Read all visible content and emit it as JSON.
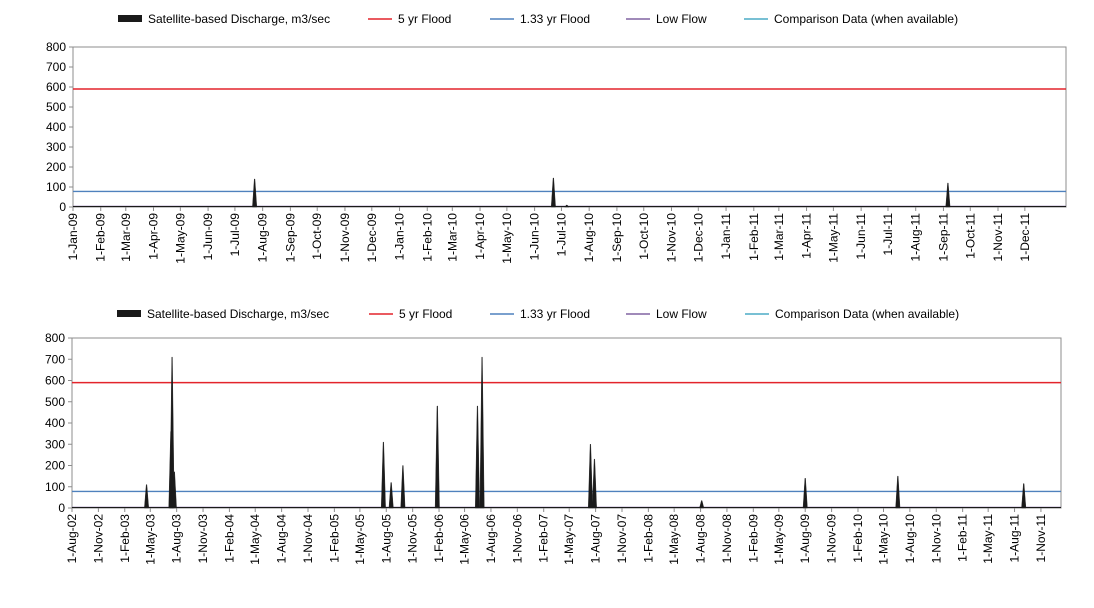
{
  "colors": {
    "discharge": "#1a1a1a",
    "flood_5yr": "#e3242b",
    "flood_133yr": "#4f81bd",
    "low_flow": "#8064a2",
    "comparison": "#4bacc6"
  },
  "chart_data": [
    {
      "type": "area",
      "legend": [
        {
          "name": "Satellite-based Discharge, m3/sec",
          "kind": "discharge"
        },
        {
          "name": "5 yr Flood",
          "kind": "flood_5yr"
        },
        {
          "name": "1.33 yr Flood",
          "kind": "flood_133yr"
        },
        {
          "name": "Low Flow",
          "kind": "low_flow"
        },
        {
          "name": "Comparison Data (when available)",
          "kind": "comparison"
        }
      ],
      "legend_position": "top",
      "ylim": [
        0,
        800
      ],
      "yticks": [
        0,
        100,
        200,
        300,
        400,
        500,
        600,
        700,
        800
      ],
      "x_start": "2009-01-01",
      "x_end": "2012-01-16",
      "xtick_labels": [
        "1-Jan-09",
        "1-Feb-09",
        "1-Mar-09",
        "1-Apr-09",
        "1-May-09",
        "1-Jun-09",
        "1-Jul-09",
        "1-Aug-09",
        "1-Sep-09",
        "1-Oct-09",
        "1-Nov-09",
        "1-Dec-09",
        "1-Jan-10",
        "1-Feb-10",
        "1-Mar-10",
        "1-Apr-10",
        "1-May-10",
        "1-Jun-10",
        "1-Jul-10",
        "1-Aug-10",
        "1-Sep-10",
        "1-Oct-10",
        "1-Nov-10",
        "1-Dec-10",
        "1-Jan-11",
        "1-Feb-11",
        "1-Mar-11",
        "1-Apr-11",
        "1-May-11",
        "1-Jun-11",
        "1-Jul-11",
        "1-Aug-11",
        "1-Sep-11",
        "1-Oct-11",
        "1-Nov-11",
        "1-Dec-11"
      ],
      "xtick_dates": [
        "2009-01-01",
        "2009-02-01",
        "2009-03-01",
        "2009-04-01",
        "2009-05-01",
        "2009-06-01",
        "2009-07-01",
        "2009-08-01",
        "2009-09-01",
        "2009-10-01",
        "2009-11-01",
        "2009-12-01",
        "2010-01-01",
        "2010-02-01",
        "2010-03-01",
        "2010-04-01",
        "2010-05-01",
        "2010-06-01",
        "2010-07-01",
        "2010-08-01",
        "2010-09-01",
        "2010-10-01",
        "2010-11-01",
        "2010-12-01",
        "2011-01-01",
        "2011-02-01",
        "2011-03-01",
        "2011-04-01",
        "2011-05-01",
        "2011-06-01",
        "2011-07-01",
        "2011-08-01",
        "2011-09-01",
        "2011-10-01",
        "2011-11-01",
        "2011-12-01"
      ],
      "flood_5yr": 590,
      "flood_133yr": 78,
      "low_flow": 3,
      "peaks": [
        {
          "date": "2009-07-23",
          "value": 140
        },
        {
          "date": "2010-06-22",
          "value": 145
        },
        {
          "date": "2010-07-07",
          "value": 10
        },
        {
          "date": "2011-09-06",
          "value": 120
        }
      ]
    },
    {
      "type": "area",
      "legend": [
        {
          "name": "Satellite-based Discharge, m3/sec",
          "kind": "discharge"
        },
        {
          "name": "5 yr Flood",
          "kind": "flood_5yr"
        },
        {
          "name": "1.33 yr Flood",
          "kind": "flood_133yr"
        },
        {
          "name": "Low Flow",
          "kind": "low_flow"
        },
        {
          "name": "Comparison Data (when available)",
          "kind": "comparison"
        }
      ],
      "legend_position": "top",
      "ylim": [
        0,
        800
      ],
      "yticks": [
        0,
        100,
        200,
        300,
        400,
        500,
        600,
        700,
        800
      ],
      "x_start": "2002-08-01",
      "x_end": "2012-01-10",
      "xtick_labels": [
        "1-Aug-02",
        "1-Nov-02",
        "1-Feb-03",
        "1-May-03",
        "1-Aug-03",
        "1-Nov-03",
        "1-Feb-04",
        "1-May-04",
        "1-Aug-04",
        "1-Nov-04",
        "1-Feb-05",
        "1-May-05",
        "1-Aug-05",
        "1-Nov-05",
        "1-Feb-06",
        "1-May-06",
        "1-Aug-06",
        "1-Nov-06",
        "1-Feb-07",
        "1-May-07",
        "1-Aug-07",
        "1-Nov-07",
        "1-Feb-08",
        "1-May-08",
        "1-Aug-08",
        "1-Nov-08",
        "1-Feb-09",
        "1-May-09",
        "1-Aug-09",
        "1-Nov-09",
        "1-Feb-10",
        "1-May-10",
        "1-Aug-10",
        "1-Nov-10",
        "1-Feb-11",
        "1-May-11",
        "1-Aug-11",
        "1-Nov-11"
      ],
      "xtick_dates": [
        "2002-08-01",
        "2002-11-01",
        "2003-02-01",
        "2003-05-01",
        "2003-08-01",
        "2003-11-01",
        "2004-02-01",
        "2004-05-01",
        "2004-08-01",
        "2004-11-01",
        "2005-02-01",
        "2005-05-01",
        "2005-08-01",
        "2005-11-01",
        "2006-02-01",
        "2006-05-01",
        "2006-08-01",
        "2006-11-01",
        "2007-02-01",
        "2007-05-01",
        "2007-08-01",
        "2007-11-01",
        "2008-02-01",
        "2008-05-01",
        "2008-08-01",
        "2008-11-01",
        "2009-02-01",
        "2009-05-01",
        "2009-08-01",
        "2009-11-01",
        "2010-02-01",
        "2010-05-01",
        "2010-08-01",
        "2010-11-01",
        "2011-02-01",
        "2011-05-01",
        "2011-08-01",
        "2011-11-01"
      ],
      "flood_5yr": 590,
      "flood_133yr": 78,
      "low_flow": 3,
      "peaks": [
        {
          "date": "2003-04-18",
          "value": 110
        },
        {
          "date": "2003-07-12",
          "value": 360
        },
        {
          "date": "2003-07-16",
          "value": 710
        },
        {
          "date": "2003-07-24",
          "value": 170
        },
        {
          "date": "2005-07-22",
          "value": 310
        },
        {
          "date": "2005-08-18",
          "value": 120
        },
        {
          "date": "2005-09-28",
          "value": 200
        },
        {
          "date": "2006-01-26",
          "value": 480
        },
        {
          "date": "2006-06-15",
          "value": 480
        },
        {
          "date": "2006-07-01",
          "value": 710
        },
        {
          "date": "2007-07-14",
          "value": 300
        },
        {
          "date": "2007-07-28",
          "value": 230
        },
        {
          "date": "2008-08-05",
          "value": 35
        },
        {
          "date": "2009-08-01",
          "value": 140
        },
        {
          "date": "2010-06-20",
          "value": 150
        },
        {
          "date": "2011-09-02",
          "value": 115
        }
      ]
    }
  ]
}
